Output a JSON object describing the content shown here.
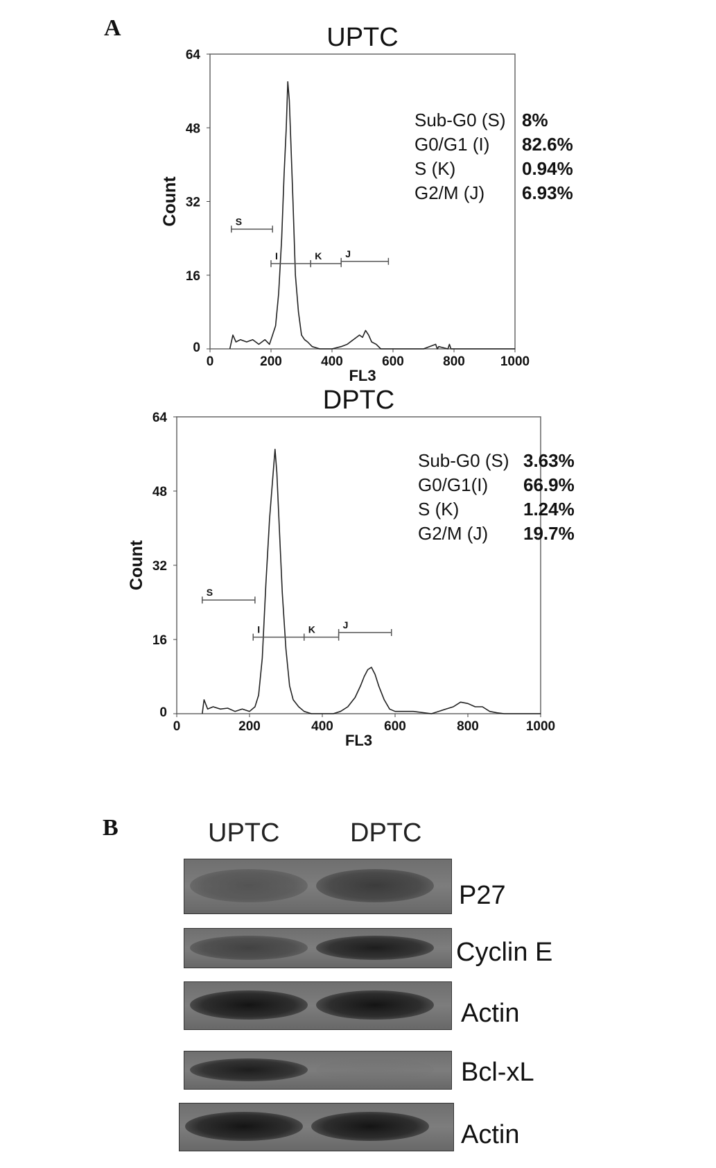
{
  "panel_a_label": "A",
  "panel_b_label": "B",
  "chart_data": [
    {
      "type": "line",
      "title": "UPTC",
      "xlabel": "FL3",
      "ylabel": "Count",
      "xlim": [
        0,
        1000
      ],
      "ylim": [
        0,
        64
      ],
      "xticks": [
        "0",
        "200",
        "400",
        "600",
        "800",
        "1000"
      ],
      "yticks": [
        "0",
        "16",
        "32",
        "48",
        "64"
      ],
      "grid": false,
      "gates": [
        {
          "label": "S",
          "x": [
            70,
            205
          ],
          "y": 26
        },
        {
          "label": "I",
          "x": [
            200,
            330
          ],
          "y": 18.5
        },
        {
          "label": "K",
          "x": [
            330,
            430
          ],
          "y": 18.5
        },
        {
          "label": "J",
          "x": [
            430,
            585
          ],
          "y": 19
        }
      ],
      "stats": [
        {
          "label": "Sub-G0 (S)",
          "value": "8%"
        },
        {
          "label": "G0/G1 (I)",
          "value": "82.6%"
        },
        {
          "label": "S (K)",
          "value": "0.94%"
        },
        {
          "label": "G2/M (J)",
          "value": "6.93%"
        }
      ],
      "x": [
        65,
        75,
        85,
        100,
        120,
        140,
        160,
        180,
        195,
        205,
        215,
        225,
        235,
        243,
        250,
        255,
        260,
        265,
        272,
        280,
        290,
        300,
        310,
        320,
        335,
        360,
        400,
        430,
        450,
        470,
        490,
        500,
        510,
        520,
        530,
        545,
        560,
        600,
        700,
        740,
        745,
        750,
        780,
        785,
        790,
        850,
        1000
      ],
      "y": [
        0,
        3,
        1.5,
        2,
        1.5,
        2,
        1,
        2,
        1,
        3,
        5,
        12,
        24,
        38,
        48,
        58,
        54,
        45,
        32,
        16,
        8,
        3,
        2,
        1.5,
        0.5,
        0,
        0,
        0.5,
        1,
        2,
        3,
        2.5,
        4,
        3,
        1.5,
        1,
        0,
        0,
        0,
        1,
        0,
        0.5,
        0,
        1,
        0,
        0,
        0
      ]
    },
    {
      "type": "line",
      "title": "DPTC",
      "xlabel": "FL3",
      "ylabel": "Count",
      "xlim": [
        0,
        1000
      ],
      "ylim": [
        0,
        64
      ],
      "xticks": [
        "0",
        "200",
        "400",
        "600",
        "800",
        "1000"
      ],
      "yticks": [
        "0",
        "16",
        "32",
        "48",
        "64"
      ],
      "grid": false,
      "gates": [
        {
          "label": "S",
          "x": [
            70,
            215
          ],
          "y": 24.5
        },
        {
          "label": "I",
          "x": [
            210,
            350
          ],
          "y": 16.5
        },
        {
          "label": "K",
          "x": [
            350,
            445
          ],
          "y": 16.5
        },
        {
          "label": "J",
          "x": [
            445,
            590
          ],
          "y": 17.5
        }
      ],
      "stats": [
        {
          "label": "Sub-G0 (S)",
          "value": "3.63%"
        },
        {
          "label": "G0/G1(I)",
          "value": "66.9%"
        },
        {
          "label": "S (K)",
          "value": "1.24%"
        },
        {
          "label": "G2/M (J)",
          "value": "19.7%"
        }
      ],
      "x": [
        70,
        75,
        85,
        100,
        120,
        140,
        160,
        180,
        200,
        215,
        225,
        235,
        245,
        255,
        263,
        270,
        275,
        282,
        290,
        300,
        310,
        320,
        335,
        350,
        370,
        400,
        430,
        450,
        470,
        490,
        505,
        515,
        525,
        535,
        545,
        555,
        570,
        585,
        600,
        650,
        700,
        740,
        760,
        780,
        800,
        820,
        840,
        860,
        880,
        900,
        1000
      ],
      "y": [
        0,
        3,
        1,
        1.5,
        1,
        1.2,
        0.5,
        1,
        0.5,
        1.5,
        4,
        12,
        28,
        42,
        50,
        57,
        52,
        40,
        26,
        14,
        6,
        3,
        1.5,
        0.5,
        0,
        0,
        0,
        0.5,
        1.5,
        3.5,
        6,
        8,
        9.5,
        10,
        8.5,
        6,
        3,
        1,
        0.5,
        0.5,
        0,
        1,
        1.5,
        2.5,
        2.2,
        1.5,
        1.5,
        0.5,
        0.2,
        0,
        0
      ]
    }
  ],
  "blot": {
    "lanes": [
      "UPTC",
      "DPTC"
    ],
    "rows": [
      {
        "label": "P27",
        "intensity": [
          0.55,
          0.75
        ]
      },
      {
        "label": "Cyclin E",
        "intensity": [
          0.7,
          0.95
        ]
      },
      {
        "label": "Actin",
        "intensity": [
          1.0,
          1.0
        ]
      },
      {
        "label": "Bcl-xL",
        "intensity": [
          0.95,
          0.05
        ]
      },
      {
        "label": "Actin",
        "intensity": [
          1.0,
          1.0
        ]
      }
    ]
  }
}
